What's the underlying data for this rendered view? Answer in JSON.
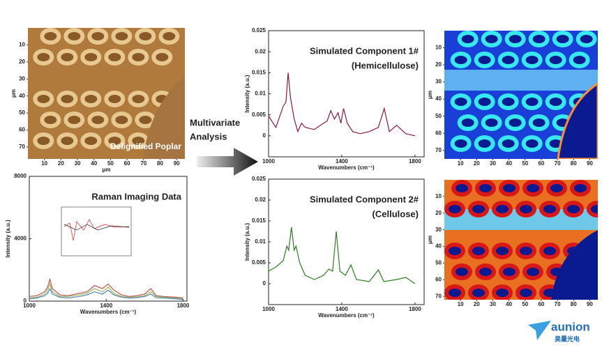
{
  "chart_data": [
    {
      "type": "line",
      "title": "Raman Imaging Data",
      "xlabel": "Wavenumbers (cm⁻¹)",
      "ylabel": "Intensity (a.u.)",
      "xlim": [
        1000,
        1820
      ],
      "xticks": [
        1000,
        1400,
        1800
      ],
      "ylim": [
        0,
        8000
      ],
      "yticks": [
        0,
        4000,
        8000
      ],
      "x": [
        1000,
        1040,
        1080,
        1095,
        1107,
        1120,
        1160,
        1200,
        1260,
        1300,
        1340,
        1380,
        1410,
        1440,
        1480,
        1520,
        1560,
        1600,
        1632,
        1660,
        1700,
        1760,
        1800
      ],
      "series": [
        {
          "color": "#c0504d",
          "values": [
            300,
            350,
            600,
            900,
            1400,
            800,
            400,
            350,
            500,
            600,
            1000,
            800,
            1100,
            700,
            400,
            300,
            350,
            450,
            800,
            350,
            300,
            250,
            200
          ]
        },
        {
          "color": "#9bbb59",
          "values": [
            200,
            250,
            450,
            700,
            1100,
            600,
            300,
            300,
            400,
            500,
            800,
            600,
            900,
            500,
            300,
            250,
            280,
            350,
            600,
            300,
            250,
            200,
            150
          ]
        },
        {
          "color": "#4f81bd",
          "values": [
            150,
            200,
            350,
            500,
            800,
            450,
            250,
            200,
            300,
            400,
            600,
            450,
            700,
            400,
            250,
            200,
            220,
            300,
            450,
            220,
            200,
            150,
            100
          ]
        }
      ]
    },
    {
      "type": "line",
      "title": "Simulated Component 1#",
      "subtitle": "(Hemicellulose)",
      "xlabel": "Wavenumbers (cm⁻¹)",
      "ylabel": "Intensity (a.u.)",
      "xlim": [
        1000,
        1850
      ],
      "xticks": [
        1000,
        1400,
        1800
      ],
      "ylim": [
        -0.005,
        0.025
      ],
      "yticks": [
        0,
        0.005,
        0.01,
        0.015,
        0.02,
        0.025
      ],
      "x": [
        1000,
        1040,
        1080,
        1095,
        1107,
        1120,
        1140,
        1160,
        1180,
        1200,
        1250,
        1300,
        1320,
        1340,
        1360,
        1380,
        1395,
        1410,
        1430,
        1460,
        1500,
        1550,
        1600,
        1632,
        1660,
        1700,
        1750,
        1800
      ],
      "series": [
        {
          "color": "#8b1a3a",
          "values": [
            0.0047,
            0.002,
            0.007,
            0.008,
            0.015,
            0.009,
            0.004,
            0.001,
            0.003,
            0.002,
            0.0015,
            0.003,
            0.0035,
            0.006,
            0.004,
            0.0055,
            0.003,
            0.0065,
            0.003,
            0.001,
            0.0005,
            0.001,
            0.002,
            0.0065,
            0.001,
            0.0025,
            0.0005,
            0
          ]
        }
      ]
    },
    {
      "type": "line",
      "title": "Simulated Component 2#",
      "subtitle": "(Cellulose)",
      "xlabel": "Wavenumbers (cm⁻¹)",
      "ylabel": "Intensity (a.u.)",
      "xlim": [
        1000,
        1850
      ],
      "xticks": [
        1000,
        1400,
        1800
      ],
      "ylim": [
        -0.005,
        0.025
      ],
      "yticks": [
        0,
        0.005,
        0.01,
        0.015,
        0.02,
        0.025
      ],
      "x": [
        1000,
        1040,
        1080,
        1100,
        1110,
        1125,
        1140,
        1150,
        1170,
        1200,
        1250,
        1300,
        1330,
        1350,
        1370,
        1390,
        1420,
        1450,
        1480,
        1550,
        1600,
        1630,
        1700,
        1750,
        1800
      ],
      "series": [
        {
          "color": "#2e7d1f",
          "values": [
            0.003,
            0.004,
            0.0055,
            0.009,
            0.008,
            0.0135,
            0.008,
            0.009,
            0.005,
            0.002,
            0.001,
            0.002,
            0.0035,
            0.003,
            0.0125,
            0.003,
            0.002,
            0.0045,
            0.001,
            0.0005,
            0.0033,
            0.0005,
            0.001,
            0.0015,
            0
          ]
        }
      ]
    }
  ],
  "images": [
    {
      "label": "Delignified Poplar",
      "xlabel": "μm",
      "ylabel": "μm",
      "xlim": [
        0,
        95
      ],
      "ylim": [
        0,
        77
      ],
      "xticks": [
        10,
        20,
        30,
        40,
        50,
        60,
        70,
        80,
        90
      ],
      "yticks": [
        10,
        20,
        30,
        40,
        50,
        60,
        70
      ]
    },
    {
      "xlim": [
        0,
        95
      ],
      "ylim": [
        0,
        75
      ],
      "ylabel": "μm",
      "xticks": [
        10,
        20,
        30,
        40,
        50,
        60,
        70,
        80,
        90
      ],
      "yticks": [
        10,
        20,
        30,
        40,
        50,
        60,
        70
      ]
    },
    {
      "xlim": [
        0,
        95
      ],
      "ylim": [
        0,
        72
      ],
      "ylabel": "μm",
      "xticks": [
        10,
        20,
        30,
        40,
        50,
        60,
        70,
        80,
        90
      ],
      "yticks": [
        10,
        20,
        30,
        40,
        50,
        60,
        70
      ]
    }
  ],
  "arrow_label": [
    "Multivariate",
    "Analysis"
  ],
  "watermark": {
    "brand": "aunion",
    "sub": "昊量光电"
  }
}
